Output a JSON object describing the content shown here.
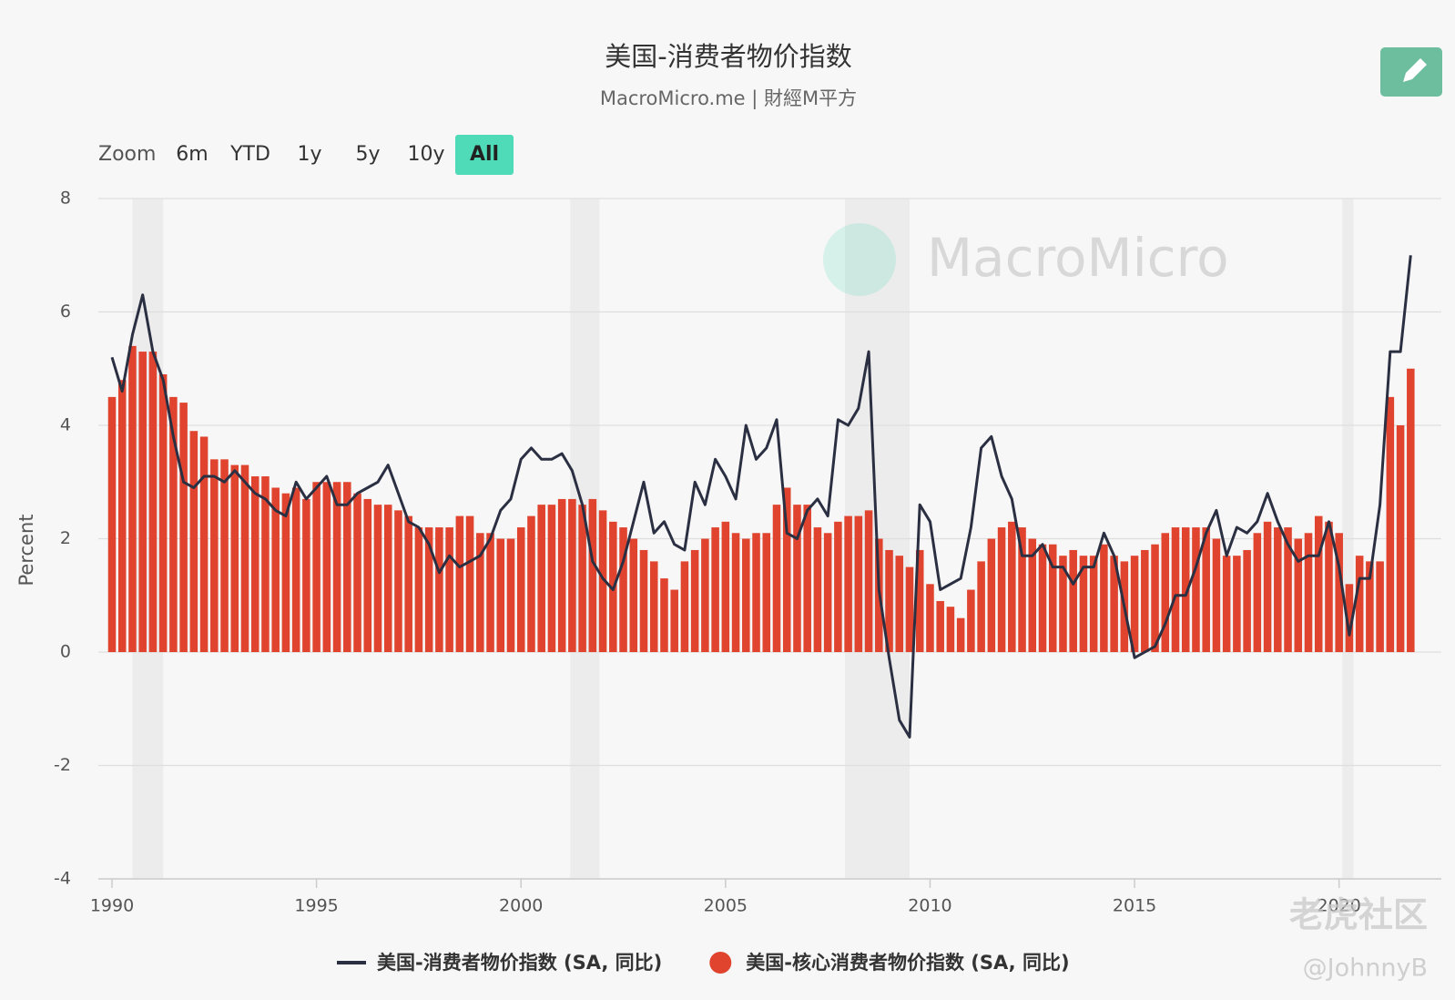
{
  "chart_data": {
    "type": "bar-line",
    "title": "美国-消费者物价指数",
    "subtitle": "MacroMicro.me | 財經M平方",
    "zoom": {
      "label": "Zoom",
      "buttons": [
        "6m",
        "YTD",
        "1y",
        "5y",
        "10y",
        "All"
      ],
      "active": "All"
    },
    "y_label": "Percent",
    "watermark": "MacroMicro",
    "overlay": [
      "老虎社区",
      "@JohnnyB"
    ],
    "xlim": [
      1990,
      2022.5
    ],
    "xticks": [
      1990,
      1995,
      2000,
      2005,
      2010,
      2015,
      2020
    ],
    "ylim": [
      -4,
      8
    ],
    "yticks": [
      -4,
      -2,
      0,
      2,
      4,
      6,
      8
    ],
    "grid": true,
    "recessions": [
      [
        1990.5,
        1991.25
      ],
      [
        2001.2,
        2001.92
      ],
      [
        2007.92,
        2009.5
      ],
      [
        2020.08,
        2020.35
      ]
    ],
    "x": [
      1990,
      1990.25,
      1990.5,
      1990.75,
      1991,
      1991.25,
      1991.5,
      1991.75,
      1992,
      1992.25,
      1992.5,
      1992.75,
      1993,
      1993.25,
      1993.5,
      1993.75,
      1994,
      1994.25,
      1994.5,
      1994.75,
      1995,
      1995.25,
      1995.5,
      1995.75,
      1996,
      1996.25,
      1996.5,
      1996.75,
      1997,
      1997.25,
      1997.5,
      1997.75,
      1998,
      1998.25,
      1998.5,
      1998.75,
      1999,
      1999.25,
      1999.5,
      1999.75,
      2000,
      2000.25,
      2000.5,
      2000.75,
      2001,
      2001.25,
      2001.5,
      2001.75,
      2002,
      2002.25,
      2002.5,
      2002.75,
      2003,
      2003.25,
      2003.5,
      2003.75,
      2004,
      2004.25,
      2004.5,
      2004.75,
      2005,
      2005.25,
      2005.5,
      2005.75,
      2006,
      2006.25,
      2006.5,
      2006.75,
      2007,
      2007.25,
      2007.5,
      2007.75,
      2008,
      2008.25,
      2008.5,
      2008.75,
      2009,
      2009.25,
      2009.5,
      2009.75,
      2010,
      2010.25,
      2010.5,
      2010.75,
      2011,
      2011.25,
      2011.5,
      2011.75,
      2012,
      2012.25,
      2012.5,
      2012.75,
      2013,
      2013.25,
      2013.5,
      2013.75,
      2014,
      2014.25,
      2014.5,
      2014.75,
      2015,
      2015.25,
      2015.5,
      2015.75,
      2016,
      2016.25,
      2016.5,
      2016.75,
      2017,
      2017.25,
      2017.5,
      2017.75,
      2018,
      2018.25,
      2018.5,
      2018.75,
      2019,
      2019.25,
      2019.5,
      2019.75,
      2020,
      2020.25,
      2020.5,
      2020.75,
      2021,
      2021.25,
      2021.5,
      2021.75
    ],
    "series": [
      {
        "name": "美国-消费者物价指数 (SA, 同比)",
        "kind": "line",
        "color": "#2b2f42",
        "values": [
          5.2,
          4.6,
          5.6,
          6.3,
          5.3,
          4.8,
          3.8,
          3.0,
          2.9,
          3.1,
          3.1,
          3.0,
          3.2,
          3.0,
          2.8,
          2.7,
          2.5,
          2.4,
          3.0,
          2.7,
          2.9,
          3.1,
          2.6,
          2.6,
          2.8,
          2.9,
          3.0,
          3.3,
          2.8,
          2.3,
          2.2,
          1.9,
          1.4,
          1.7,
          1.5,
          1.6,
          1.7,
          2.0,
          2.5,
          2.7,
          3.4,
          3.6,
          3.4,
          3.4,
          3.5,
          3.2,
          2.6,
          1.6,
          1.3,
          1.1,
          1.6,
          2.3,
          3.0,
          2.1,
          2.3,
          1.9,
          1.8,
          3.0,
          2.6,
          3.4,
          3.1,
          2.7,
          4.0,
          3.4,
          3.6,
          4.1,
          2.1,
          2.0,
          2.5,
          2.7,
          2.4,
          4.1,
          4.0,
          4.3,
          5.3,
          1.1,
          -0.1,
          -1.2,
          -1.5,
          2.6,
          2.3,
          1.1,
          1.2,
          1.3,
          2.2,
          3.6,
          3.8,
          3.1,
          2.7,
          1.7,
          1.7,
          1.9,
          1.5,
          1.5,
          1.2,
          1.5,
          1.5,
          2.1,
          1.7,
          0.8,
          -0.1,
          0.0,
          0.1,
          0.5,
          1.0,
          1.0,
          1.5,
          2.1,
          2.5,
          1.7,
          2.2,
          2.1,
          2.3,
          2.8,
          2.3,
          1.9,
          1.6,
          1.7,
          1.7,
          2.3,
          1.5,
          0.3,
          1.3,
          1.3,
          2.6,
          5.3,
          5.3,
          7.0
        ]
      },
      {
        "name": "美国-核心消费者物价指数 (SA, 同比)",
        "kind": "bar",
        "color": "#e0442f",
        "values": [
          4.5,
          4.8,
          5.4,
          5.3,
          5.3,
          4.9,
          4.5,
          4.4,
          3.9,
          3.8,
          3.4,
          3.4,
          3.3,
          3.3,
          3.1,
          3.1,
          2.9,
          2.8,
          2.9,
          2.7,
          3.0,
          3.0,
          3.0,
          3.0,
          2.8,
          2.7,
          2.6,
          2.6,
          2.5,
          2.4,
          2.2,
          2.2,
          2.2,
          2.2,
          2.4,
          2.4,
          2.1,
          2.1,
          2.0,
          2.0,
          2.2,
          2.4,
          2.6,
          2.6,
          2.7,
          2.7,
          2.6,
          2.7,
          2.5,
          2.3,
          2.2,
          2.0,
          1.8,
          1.6,
          1.3,
          1.1,
          1.6,
          1.8,
          2.0,
          2.2,
          2.3,
          2.1,
          2.0,
          2.1,
          2.1,
          2.6,
          2.9,
          2.6,
          2.6,
          2.2,
          2.1,
          2.3,
          2.4,
          2.4,
          2.5,
          2.0,
          1.8,
          1.7,
          1.5,
          1.8,
          1.2,
          0.9,
          0.8,
          0.6,
          1.1,
          1.6,
          2.0,
          2.2,
          2.3,
          2.2,
          2.0,
          1.9,
          1.9,
          1.7,
          1.8,
          1.7,
          1.7,
          1.9,
          1.7,
          1.6,
          1.7,
          1.8,
          1.9,
          2.1,
          2.2,
          2.2,
          2.2,
          2.2,
          2.0,
          1.7,
          1.7,
          1.8,
          2.1,
          2.3,
          2.2,
          2.2,
          2.0,
          2.1,
          2.4,
          2.3,
          2.1,
          1.2,
          1.7,
          1.6,
          1.6,
          4.5,
          4.0,
          5.0
        ]
      }
    ]
  }
}
